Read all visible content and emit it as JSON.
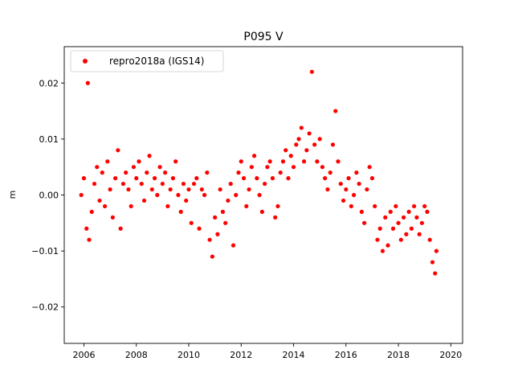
{
  "chart_data": {
    "type": "scatter",
    "title": "P095 V",
    "xlabel": "",
    "ylabel": "m",
    "xlim": [
      2005.25,
      2020.45
    ],
    "ylim": [
      -0.0265,
      0.0265
    ],
    "x_ticks": [
      2006,
      2008,
      2010,
      2012,
      2014,
      2016,
      2018,
      2020
    ],
    "x_tick_labels": [
      "2006",
      "2008",
      "2010",
      "2012",
      "2014",
      "2016",
      "2018",
      "2020"
    ],
    "y_ticks": [
      -0.02,
      -0.01,
      0.0,
      0.01,
      0.02
    ],
    "y_tick_labels": [
      "−0.02",
      "−0.01",
      "0.00",
      "0.01",
      "0.02"
    ],
    "grid": false,
    "legend_position": "top-left",
    "colors": {
      "series": "#ff0000",
      "axis": "#000000",
      "background": "#ffffff"
    },
    "series": [
      {
        "name": "repro2018a (IGS14)",
        "marker": "circle",
        "x": [
          2005.9,
          2006.0,
          2006.1,
          2006.15,
          2006.2,
          2006.3,
          2006.4,
          2006.5,
          2006.6,
          2006.7,
          2006.8,
          2006.9,
          2007.0,
          2007.1,
          2007.2,
          2007.3,
          2007.4,
          2007.5,
          2007.6,
          2007.7,
          2007.8,
          2007.9,
          2008.0,
          2008.1,
          2008.2,
          2008.3,
          2008.4,
          2008.5,
          2008.6,
          2008.7,
          2008.8,
          2008.9,
          2009.0,
          2009.1,
          2009.2,
          2009.3,
          2009.4,
          2009.5,
          2009.6,
          2009.7,
          2009.8,
          2009.9,
          2010.0,
          2010.1,
          2010.2,
          2010.3,
          2010.4,
          2010.5,
          2010.6,
          2010.7,
          2010.8,
          2010.9,
          2011.0,
          2011.1,
          2011.2,
          2011.3,
          2011.4,
          2011.5,
          2011.6,
          2011.7,
          2011.8,
          2011.9,
          2012.0,
          2012.1,
          2012.2,
          2012.3,
          2012.4,
          2012.5,
          2012.6,
          2012.7,
          2012.8,
          2012.9,
          2013.0,
          2013.1,
          2013.2,
          2013.3,
          2013.4,
          2013.5,
          2013.6,
          2013.7,
          2013.8,
          2013.9,
          2014.0,
          2014.1,
          2014.2,
          2014.3,
          2014.4,
          2014.5,
          2014.6,
          2014.7,
          2014.8,
          2014.9,
          2015.0,
          2015.1,
          2015.2,
          2015.3,
          2015.4,
          2015.5,
          2015.6,
          2015.7,
          2015.8,
          2015.9,
          2016.0,
          2016.1,
          2016.2,
          2016.3,
          2016.4,
          2016.5,
          2016.6,
          2016.7,
          2016.8,
          2016.9,
          2017.0,
          2017.1,
          2017.2,
          2017.3,
          2017.4,
          2017.5,
          2017.6,
          2017.7,
          2017.8,
          2017.9,
          2018.0,
          2018.1,
          2018.2,
          2018.3,
          2018.4,
          2018.5,
          2018.6,
          2018.7,
          2018.8,
          2018.9,
          2019.0,
          2019.1,
          2019.2,
          2019.3,
          2019.4,
          2019.45
        ],
        "y": [
          0.0,
          0.003,
          -0.006,
          0.02,
          -0.008,
          -0.003,
          0.002,
          0.005,
          -0.001,
          0.004,
          -0.002,
          0.006,
          0.001,
          -0.004,
          0.003,
          0.008,
          -0.006,
          0.002,
          0.004,
          0.001,
          -0.002,
          0.005,
          0.003,
          0.006,
          0.002,
          -0.001,
          0.004,
          0.007,
          0.001,
          0.003,
          0.0,
          0.005,
          0.002,
          0.004,
          -0.002,
          0.001,
          0.003,
          0.006,
          0.0,
          -0.003,
          0.002,
          -0.001,
          0.001,
          -0.005,
          0.002,
          0.003,
          -0.006,
          0.001,
          0.0,
          0.004,
          -0.008,
          -0.011,
          -0.004,
          -0.007,
          0.001,
          -0.003,
          -0.005,
          -0.001,
          0.002,
          -0.009,
          0.0,
          0.004,
          0.006,
          0.003,
          -0.002,
          0.001,
          0.005,
          0.007,
          0.003,
          0.0,
          -0.003,
          0.002,
          0.005,
          0.006,
          0.003,
          -0.004,
          -0.002,
          0.004,
          0.006,
          0.008,
          0.003,
          0.007,
          0.005,
          0.009,
          0.01,
          0.012,
          0.006,
          0.008,
          0.011,
          0.022,
          0.009,
          0.006,
          0.01,
          0.005,
          0.003,
          0.001,
          0.004,
          0.009,
          0.015,
          0.006,
          0.002,
          -0.001,
          0.001,
          0.003,
          -0.002,
          0.0,
          0.004,
          0.002,
          -0.003,
          -0.005,
          0.001,
          0.005,
          0.003,
          -0.002,
          -0.008,
          -0.006,
          -0.01,
          -0.004,
          -0.009,
          -0.003,
          -0.006,
          -0.002,
          -0.005,
          -0.008,
          -0.004,
          -0.007,
          -0.003,
          -0.006,
          -0.002,
          -0.004,
          -0.007,
          -0.005,
          -0.002,
          -0.003,
          -0.008,
          -0.012,
          -0.014,
          -0.01
        ]
      }
    ]
  }
}
